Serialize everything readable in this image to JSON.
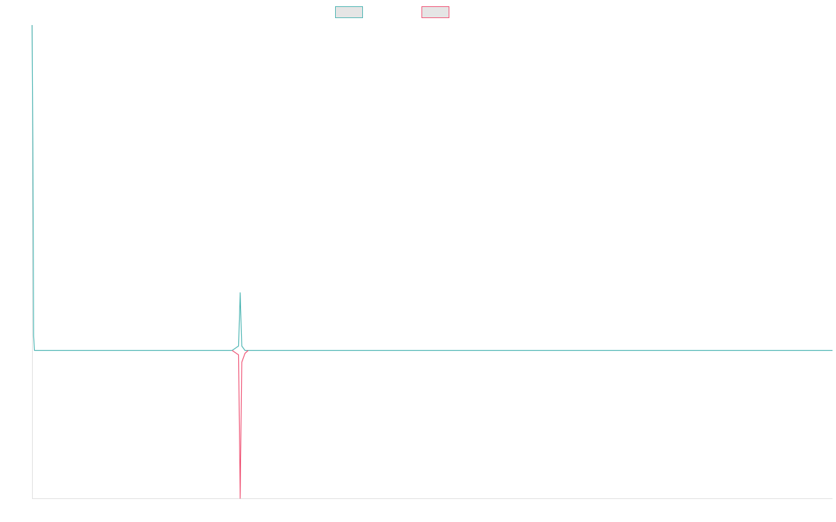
{
  "chart_data": {
    "type": "line",
    "title": "",
    "xlabel": "",
    "ylabel": "",
    "grid": false,
    "legend": {
      "placement": "top-center",
      "entries": [
        {
          "color": "#4fb6b4"
        },
        {
          "color": "#ef5677"
        }
      ]
    },
    "xlim": [
      0,
      1000
    ],
    "ylim": [
      -1,
      2.2
    ],
    "series": [
      {
        "color": "#4fb6b4",
        "points": [
          [
            0,
            2.2
          ],
          [
            1,
            1.4
          ],
          [
            2,
            0.1
          ],
          [
            3,
            0.0
          ],
          [
            250,
            0.0
          ],
          [
            258,
            0.03
          ],
          [
            260,
            0.39
          ],
          [
            262,
            0.03
          ],
          [
            266,
            0.0
          ],
          [
            1000,
            0.0
          ]
        ]
      },
      {
        "color": "#ef5677",
        "points": [
          [
            250,
            0.0
          ],
          [
            258,
            -0.03
          ],
          [
            260,
            -1.0
          ],
          [
            262,
            -0.08
          ],
          [
            266,
            -0.02
          ],
          [
            270,
            0.0
          ]
        ]
      }
    ]
  }
}
